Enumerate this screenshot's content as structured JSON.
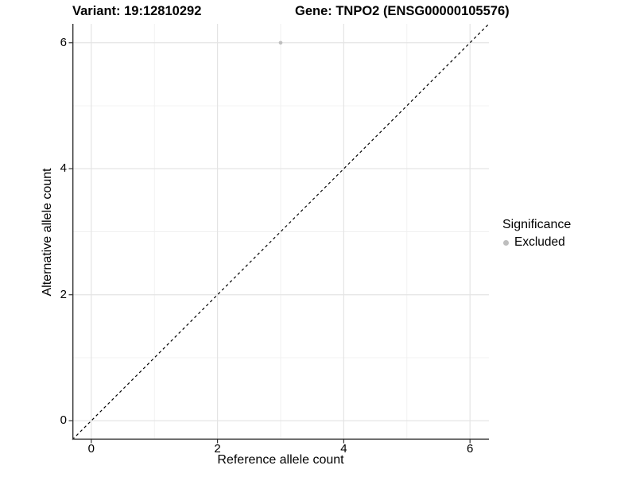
{
  "chart_data": {
    "type": "scatter",
    "titles": {
      "left": "Variant: 19:12810292",
      "right": "Gene: TNPO2 (ENSG00000105576)"
    },
    "xlabel": "Reference allele count",
    "ylabel": "Alternative allele count",
    "xlim": [
      -0.3,
      6.3
    ],
    "ylim": [
      -0.3,
      6.3
    ],
    "x_ticks": [
      0,
      2,
      4,
      6
    ],
    "y_ticks": [
      0,
      2,
      4,
      6
    ],
    "grid": "major and minor gridlines on, white background",
    "series": [
      {
        "name": "Excluded",
        "color": "#bebebe",
        "point_radius": 2.3,
        "points": [
          {
            "x": 3,
            "y": 6
          }
        ]
      }
    ],
    "reference_line": {
      "type": "identity y=x",
      "style": "dashed",
      "color": "#000000",
      "from": {
        "x": -0.3,
        "y": -0.3
      },
      "to": {
        "x": 6.3,
        "y": 6.3
      }
    },
    "legend": {
      "title": "Significance",
      "position": "right",
      "items": [
        {
          "label": "Excluded",
          "color": "#bebebe"
        }
      ]
    },
    "colors": {
      "axis_line": "#333333",
      "grid_major": "#e4e4e4",
      "grid_minor": "#f0f0f0",
      "background": "#ffffff",
      "text": "#000000"
    }
  }
}
